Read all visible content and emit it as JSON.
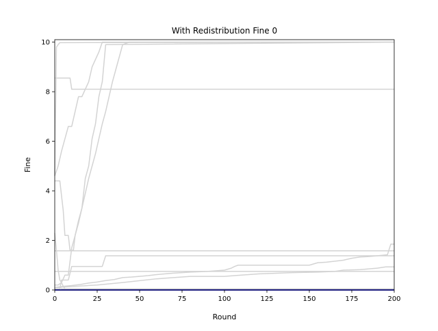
{
  "chart_data": {
    "type": "line",
    "title": "With Redistribution Fine 0",
    "xlabel": "Round",
    "ylabel": "Fine",
    "xlim": [
      0,
      200
    ],
    "ylim": [
      0,
      10.1
    ],
    "xticks": [
      "0",
      "25",
      "50",
      "75",
      "100",
      "125",
      "150",
      "175",
      "200"
    ],
    "yticks": [
      "0",
      "2",
      "4",
      "6",
      "8",
      "10"
    ],
    "grid": false,
    "legend": "none",
    "colors": {
      "background_series": "#d3d3d3",
      "highlight_series": "#0000cc",
      "axes": "#000000"
    },
    "series": [
      {
        "color": "#d3d3d3",
        "x": [
          0,
          1,
          2,
          3,
          200
        ],
        "y": [
          4.6,
          9.8,
          9.9,
          9.98,
          10.0
        ]
      },
      {
        "color": "#d3d3d3",
        "x": [
          0,
          3,
          5,
          6,
          7,
          8,
          9,
          10,
          11,
          12,
          14,
          16,
          18,
          20,
          22,
          24,
          26,
          28,
          30,
          200
        ],
        "y": [
          4.4,
          4.4,
          3.2,
          2.2,
          2.2,
          2.2,
          1.6,
          1.6,
          1.6,
          2.2,
          2.7,
          3.3,
          4.5,
          5.0,
          6.1,
          6.7,
          7.8,
          8.4,
          9.9,
          10.0
        ]
      },
      {
        "color": "#d3d3d3",
        "x": [
          0,
          2,
          4,
          6,
          8,
          10,
          12,
          14,
          16,
          18,
          20,
          22,
          24,
          26,
          28,
          30,
          32,
          34,
          36,
          38,
          40,
          42,
          44,
          46,
          200
        ],
        "y": [
          0.2,
          0.2,
          0.3,
          0.6,
          0.6,
          1.7,
          2.2,
          2.8,
          3.3,
          3.9,
          4.5,
          5.0,
          5.5,
          6.1,
          6.7,
          7.2,
          7.8,
          8.4,
          8.9,
          9.4,
          9.9,
          9.95,
          10.0,
          10.0,
          10.0
        ]
      },
      {
        "color": "#d3d3d3",
        "x": [
          0,
          2,
          4,
          6,
          8,
          10,
          12,
          14,
          16,
          18,
          20,
          22,
          24,
          26,
          28,
          200
        ],
        "y": [
          4.6,
          5.0,
          5.6,
          6.1,
          6.6,
          6.6,
          7.2,
          7.8,
          7.8,
          8.1,
          8.4,
          9.0,
          9.3,
          9.6,
          10.0,
          10.0
        ]
      },
      {
        "color": "#d3d3d3",
        "x": [
          0,
          9,
          10,
          200
        ],
        "y": [
          8.55,
          8.55,
          8.1,
          8.1
        ]
      },
      {
        "color": "#d3d3d3",
        "x": [
          0,
          200
        ],
        "y": [
          1.58,
          1.58
        ]
      },
      {
        "color": "#d3d3d3",
        "x": [
          0,
          1,
          2,
          3,
          4,
          5,
          6,
          200
        ],
        "y": [
          2.3,
          1.6,
          0.8,
          0.4,
          0.3,
          0.15,
          0.05,
          0.0
        ]
      },
      {
        "color": "#d3d3d3",
        "x": [
          0,
          3,
          4,
          8,
          10,
          28,
          30,
          200
        ],
        "y": [
          0.05,
          0.05,
          0.4,
          0.4,
          0.95,
          0.95,
          1.38,
          1.38
        ]
      },
      {
        "color": "#d3d3d3",
        "x": [
          0,
          5,
          10,
          15,
          20,
          25,
          30,
          35,
          40,
          45,
          50,
          55,
          60,
          70,
          80,
          90,
          100,
          104,
          106,
          108,
          110,
          150,
          155,
          160,
          170,
          175,
          180,
          185,
          190,
          196,
          198,
          200
        ],
        "y": [
          0.1,
          0.15,
          0.18,
          0.22,
          0.28,
          0.32,
          0.38,
          0.42,
          0.5,
          0.52,
          0.55,
          0.58,
          0.62,
          0.68,
          0.72,
          0.75,
          0.8,
          0.88,
          0.95,
          1.0,
          1.0,
          1.0,
          1.1,
          1.12,
          1.2,
          1.28,
          1.33,
          1.35,
          1.38,
          1.42,
          1.85,
          1.85
        ]
      },
      {
        "color": "#d3d3d3",
        "x": [
          0,
          25,
          40,
          60,
          80,
          100,
          110,
          120,
          140,
          155,
          165,
          170,
          180,
          190,
          195,
          200
        ],
        "y": [
          0.1,
          0.2,
          0.3,
          0.45,
          0.55,
          0.55,
          0.6,
          0.65,
          0.7,
          0.72,
          0.75,
          0.8,
          0.82,
          0.88,
          0.93,
          0.93
        ]
      },
      {
        "color": "#d3d3d3",
        "x": [
          0,
          200
        ],
        "y": [
          0.75,
          0.75
        ]
      },
      {
        "color": "#d3d3d3",
        "x": [
          0,
          3,
          4,
          200
        ],
        "y": [
          0.1,
          0.1,
          0.05,
          0.05
        ]
      },
      {
        "color": "#0000cc",
        "x": [
          0,
          200
        ],
        "y": [
          0.0,
          0.0
        ]
      }
    ]
  }
}
